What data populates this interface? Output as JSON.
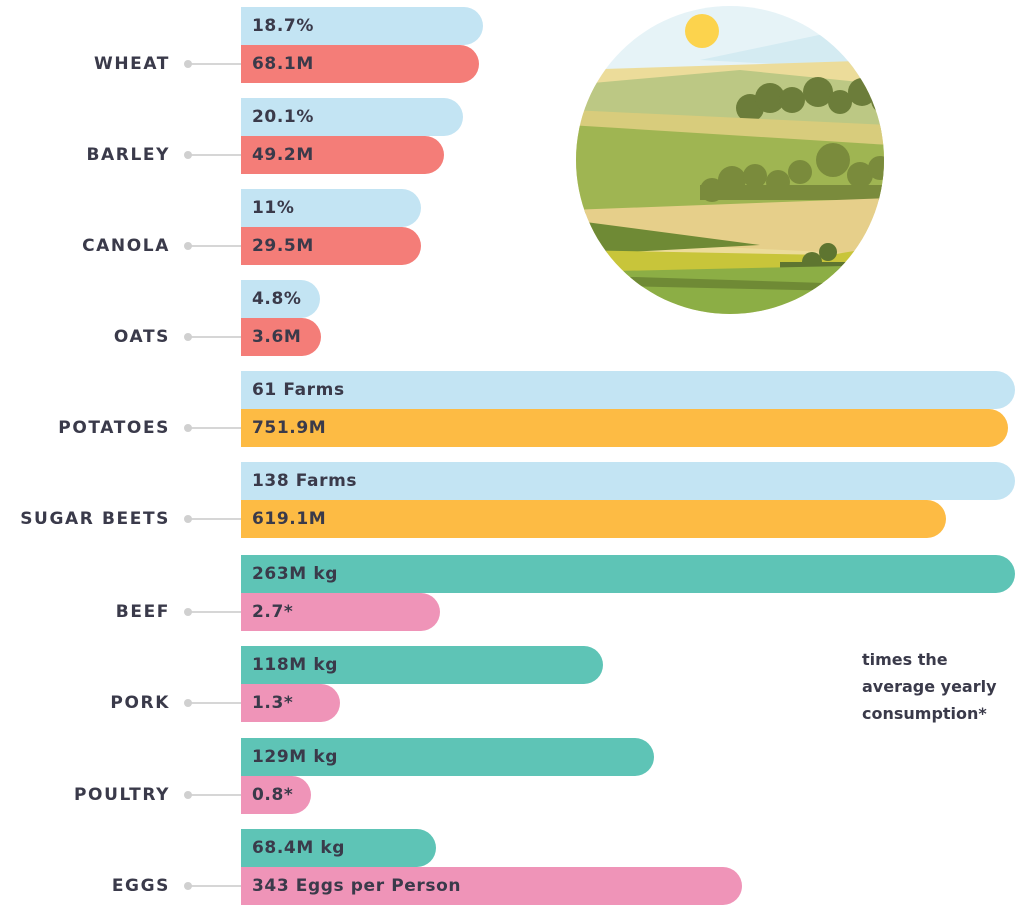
{
  "rows": [
    {
      "label": "WHEAT",
      "top": "18.7%",
      "bottom": "68.1M"
    },
    {
      "label": "BARLEY",
      "top": "20.1%",
      "bottom": "49.2M"
    },
    {
      "label": "CANOLA",
      "top": "11%",
      "bottom": "29.5M"
    },
    {
      "label": "OATS",
      "top": "4.8%",
      "bottom": "3.6M"
    },
    {
      "label": "POTATOES",
      "top": "61 Farms",
      "bottom": "751.9M"
    },
    {
      "label": "SUGAR BEETS",
      "top": "138 Farms",
      "bottom": "619.1M"
    },
    {
      "label": "BEEF",
      "top": "263M kg",
      "bottom": "2.7*"
    },
    {
      "label": "PORK",
      "top": "118M kg",
      "bottom": "1.3*"
    },
    {
      "label": "POULTRY",
      "top": "129M kg",
      "bottom": "0.8*"
    },
    {
      "label": "EGGS",
      "top": "68.4M kg",
      "bottom": "343 Eggs per Person"
    }
  ],
  "note": "times the average yearly consumption*"
}
